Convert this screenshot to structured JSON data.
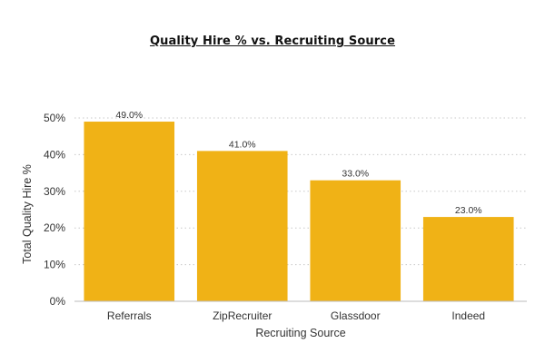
{
  "chart_data": {
    "type": "bar",
    "title": "Quality Hire % vs. Recruiting Source",
    "xlabel": "Recruiting Source",
    "ylabel": "Total Quality Hire %",
    "categories": [
      "Referrals",
      "ZipRecruiter",
      "Glassdoor",
      "Indeed"
    ],
    "values": [
      49.0,
      41.0,
      33.0,
      23.0
    ],
    "value_labels": [
      "49.0%",
      "41.0%",
      "33.0%",
      "23.0%"
    ],
    "ylim": [
      0,
      50
    ],
    "yticks": [
      0,
      10,
      20,
      30,
      40,
      50
    ],
    "ytick_labels": [
      "0%",
      "10%",
      "20%",
      "30%",
      "40%",
      "50%"
    ],
    "grid": "horizontal dotted",
    "colors": {
      "bar": "#F0B216",
      "grid": "#c8c8c8",
      "axis": "#bbbbbb",
      "text": "#333333"
    }
  }
}
